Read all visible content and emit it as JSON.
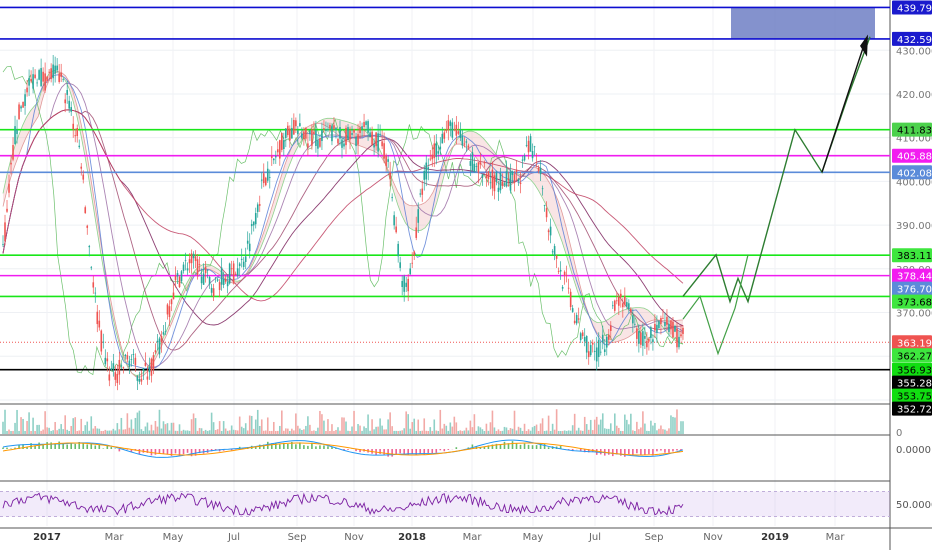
{
  "chart_data": {
    "type": "candlestick",
    "title": "",
    "price_axis": {
      "min": 349.3,
      "max": 441.5,
      "ticks": [
        350,
        360,
        370,
        380,
        390,
        400,
        410,
        420,
        430
      ],
      "tick_labels": [
        "350.000",
        "360.000",
        "370.000",
        "380.000",
        "390.000",
        "400.000",
        "410.000",
        "420.000",
        "430.000"
      ]
    },
    "time_axis": {
      "labels": [
        "2017",
        "Mar",
        "May",
        "Jul",
        "Sep",
        "Nov",
        "2018",
        "Mar",
        "May",
        "Jul",
        "Sep",
        "Nov",
        "2019",
        "Mar"
      ],
      "bold": [
        "2017",
        "2018",
        "2019"
      ]
    },
    "price_labels": [
      {
        "value": 439.796,
        "text": "439.796",
        "color": "#1a1acd"
      },
      {
        "value": 432.595,
        "text": "432.595",
        "color": "#1a1acd"
      },
      {
        "value": 411.833,
        "text": "411.833",
        "color": "#4cd24c"
      },
      {
        "value": 405.88,
        "text": "405.880",
        "color": "#f21cf0"
      },
      {
        "value": 402.085,
        "text": "402.085",
        "color": "#5b8bd9"
      },
      {
        "value": 383.115,
        "text": "383.115",
        "color": "#3ee63e"
      },
      {
        "value": 378.44,
        "text": "378.440",
        "color": "#f21cf0"
      },
      {
        "value": 376.701,
        "text": "376.701",
        "color": "#5b8bd9"
      },
      {
        "value": 373.68,
        "text": "373.680",
        "color": "#3ee63e"
      },
      {
        "value": 363.19,
        "text": "363.190",
        "color": "#ef5350"
      },
      {
        "value": 362.274,
        "text": "362.274",
        "color": "#3ee63e"
      },
      {
        "value": 356.931,
        "text": "356.931",
        "color": "#11dd11"
      },
      {
        "value": 355.28,
        "text": "355.280",
        "color": "#000000"
      },
      {
        "value": 353.751,
        "text": "353.751",
        "color": "#11dd11"
      },
      {
        "value": 352.72,
        "text": "352.720",
        "color": "#000000"
      }
    ],
    "horizontal_levels": [
      {
        "value": 439.796,
        "color": "#0d0dd0"
      },
      {
        "value": 432.595,
        "color": "#0d0dd0"
      },
      {
        "value": 411.833,
        "color": "#19e619"
      },
      {
        "value": 405.88,
        "color": "#f01cf0"
      },
      {
        "value": 402.085,
        "color": "#5b8bd9"
      },
      {
        "value": 383.115,
        "color": "#19e619"
      },
      {
        "value": 378.44,
        "color": "#f01cf0"
      },
      {
        "value": 373.68,
        "color": "#19e619"
      },
      {
        "value": 356.931,
        "color": "#000000"
      }
    ],
    "target_zone": {
      "from": 432.595,
      "to": 439.796,
      "color": "#6f7fc4"
    },
    "projection_path": [
      373.7,
      383.2,
      372.5,
      377.8,
      372.5,
      386.5,
      402.3,
      411.8,
      402.1,
      419.5,
      433.1
    ],
    "projection_path_alt": [
      368.5,
      373.7,
      363.8,
      370.5,
      360.6,
      373.7
    ],
    "price_series": [
      385,
      392,
      402,
      410,
      415,
      418,
      420,
      422,
      424,
      425,
      424,
      423,
      424,
      425,
      424,
      423,
      420,
      418,
      413,
      410,
      405,
      395,
      386,
      378,
      370,
      364,
      360,
      357,
      356,
      356,
      357,
      358,
      360,
      359,
      357,
      356,
      356,
      357,
      358,
      360,
      362,
      365,
      369,
      373,
      376,
      378,
      380,
      381,
      382,
      381,
      380,
      379,
      378,
      377,
      376,
      377,
      378,
      378,
      379,
      379,
      380,
      381,
      383,
      386,
      390,
      394,
      398,
      401,
      403,
      404,
      406,
      408,
      410,
      411,
      412,
      412,
      411,
      411,
      410,
      410,
      410,
      409,
      410,
      411,
      411,
      411,
      410,
      410,
      410,
      410,
      410,
      411,
      411,
      412,
      411,
      410,
      409,
      408,
      406,
      401,
      393,
      385,
      378,
      376,
      378,
      383,
      390,
      397,
      402,
      404,
      406,
      408,
      410,
      411,
      412,
      412,
      411,
      410,
      408,
      406,
      405,
      404,
      403,
      402,
      401,
      401,
      400,
      400,
      400,
      400,
      400,
      400,
      401,
      403,
      406,
      408,
      407,
      405,
      400,
      394,
      388,
      384,
      381,
      378,
      377,
      374,
      370,
      367,
      365,
      364,
      362,
      361,
      361,
      362,
      363,
      366,
      370,
      372,
      374,
      372,
      370,
      368,
      366,
      364,
      364,
      364,
      365,
      366,
      366,
      367,
      367,
      366,
      365,
      364,
      364
    ],
    "volume_range": [
      0,
      1
    ],
    "macd_axis": {
      "tick": 0,
      "tick_label": "0.0000"
    },
    "rsi_axis": {
      "tick": 50,
      "tick_label": "50.0000",
      "band": [
        30,
        70
      ]
    },
    "extra_label": "0"
  }
}
